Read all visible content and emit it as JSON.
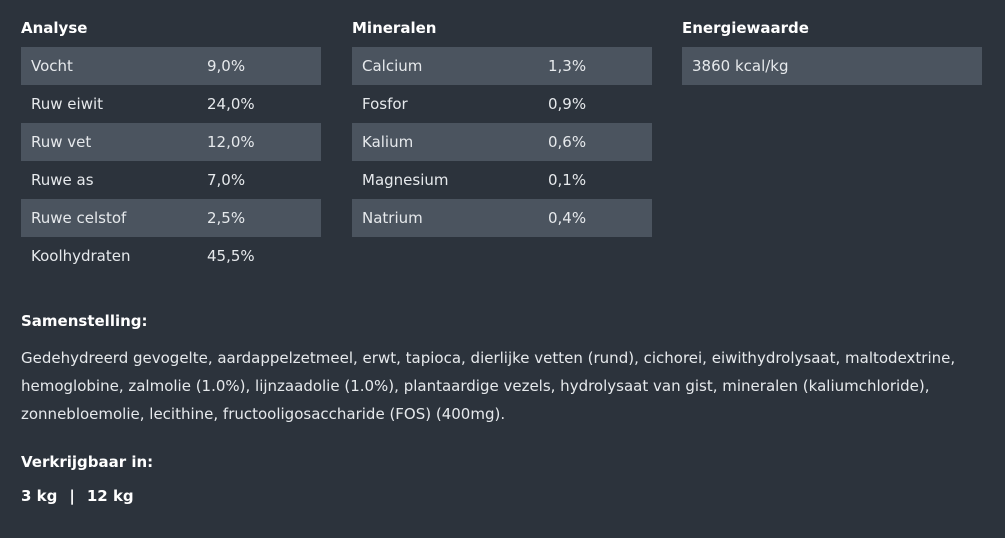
{
  "analyse": {
    "title": "Analyse",
    "rows": [
      {
        "label": "Vocht",
        "value": "9,0%"
      },
      {
        "label": "Ruw eiwit",
        "value": "24,0%"
      },
      {
        "label": "Ruw vet",
        "value": "12,0%"
      },
      {
        "label": "Ruwe as",
        "value": "7,0%"
      },
      {
        "label": "Ruwe celstof",
        "value": "2,5%"
      },
      {
        "label": "Koolhydraten",
        "value": "45,5%"
      }
    ]
  },
  "mineralen": {
    "title": "Mineralen",
    "rows": [
      {
        "label": "Calcium",
        "value": "1,3%"
      },
      {
        "label": "Fosfor",
        "value": "0,9%"
      },
      {
        "label": "Kalium",
        "value": "0,6%"
      },
      {
        "label": "Magnesium",
        "value": "0,1%"
      },
      {
        "label": "Natrium",
        "value": "0,4%"
      }
    ]
  },
  "energie": {
    "title": "Energiewaarde",
    "rows": [
      {
        "label": "3860 kcal/kg"
      }
    ]
  },
  "samenstelling": {
    "title": "Samenstelling:",
    "text": "Gedehydreerd gevogelte, aardappelzetmeel, erwt, tapioca, dierlijke vetten (rund), cichorei, eiwithydrolysaat, maltodextrine, hemoglobine, zalmolie (1.0%), lijnzaadolie (1.0%), plantaardige vezels, hydrolysaat van gist, mineralen (kaliumchloride), zonnebloemolie, lecithine, fructooligosaccharide (FOS) (400mg)."
  },
  "verkrijgbaar": {
    "title": "Verkrijgbaar in:",
    "options": [
      "3 kg",
      "12 kg"
    ],
    "separator": "|"
  }
}
